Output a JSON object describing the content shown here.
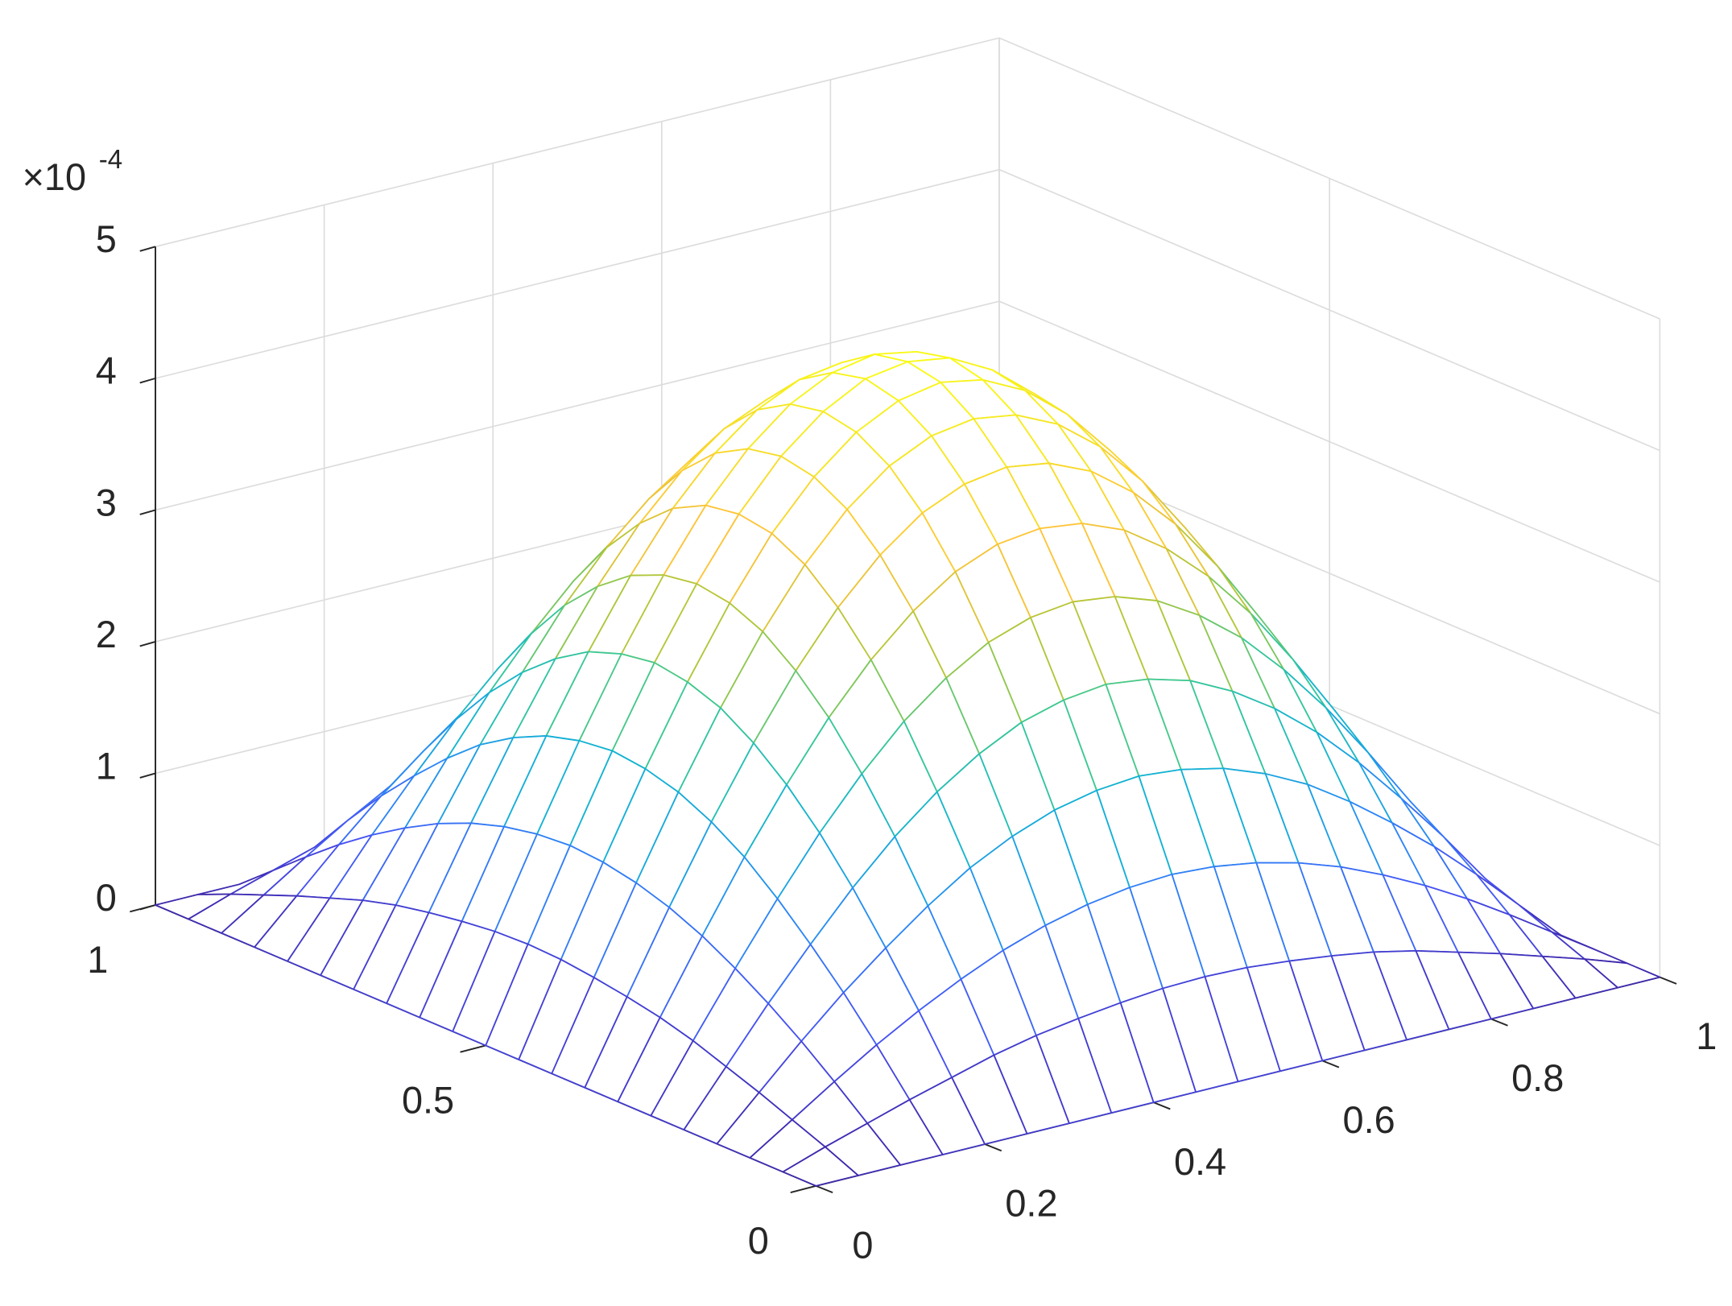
{
  "chart_data": {
    "type": "mesh",
    "colormap": "parula",
    "grid": true,
    "z_multiplier": "×10",
    "z_exponent": -4,
    "xlim": [
      0,
      1
    ],
    "ylim": [
      0,
      1
    ],
    "zlim": [
      0,
      5
    ],
    "xticks": [
      0,
      0.2,
      0.4,
      0.6,
      0.8,
      1
    ],
    "yticks": [
      0,
      0.5,
      1
    ],
    "zticks": [
      0,
      1,
      2,
      3,
      4,
      5
    ],
    "x": [
      0,
      0.05,
      0.1,
      0.15,
      0.2,
      0.25,
      0.3,
      0.35,
      0.4,
      0.45,
      0.5,
      0.55,
      0.6,
      0.65,
      0.7,
      0.75,
      0.8,
      0.85,
      0.9,
      0.95,
      1
    ],
    "y": [
      0,
      0.05,
      0.1,
      0.15,
      0.2,
      0.25,
      0.3,
      0.35,
      0.4,
      0.45,
      0.5,
      0.55,
      0.6,
      0.65,
      0.7,
      0.75,
      0.8,
      0.85,
      0.9,
      0.95,
      1
    ],
    "z": [
      [
        0,
        0,
        0,
        0,
        0,
        0,
        0,
        0,
        0,
        0,
        0,
        0,
        0,
        0,
        0,
        0,
        0,
        0,
        0,
        0,
        0
      ],
      [
        0,
        0.11,
        0.21,
        0.31,
        0.4,
        0.49,
        0.56,
        0.61,
        0.65,
        0.68,
        0.69,
        0.68,
        0.65,
        0.61,
        0.56,
        0.49,
        0.4,
        0.31,
        0.21,
        0.11,
        0
      ],
      [
        0,
        0.21,
        0.42,
        0.62,
        0.8,
        0.96,
        1.1,
        1.21,
        1.29,
        1.34,
        1.36,
        1.34,
        1.29,
        1.21,
        1.1,
        0.96,
        0.8,
        0.62,
        0.42,
        0.21,
        0
      ],
      [
        0,
        0.31,
        0.62,
        0.91,
        1.17,
        1.41,
        1.62,
        1.78,
        1.9,
        1.97,
        2,
        1.97,
        1.9,
        1.78,
        1.62,
        1.41,
        1.17,
        0.91,
        0.62,
        0.31,
        0
      ],
      [
        0,
        0.4,
        0.8,
        1.17,
        1.52,
        1.83,
        2.09,
        2.3,
        2.46,
        2.55,
        2.59,
        2.55,
        2.46,
        2.3,
        2.09,
        1.83,
        1.52,
        1.17,
        0.8,
        0.4,
        0
      ],
      [
        0,
        0.49,
        0.96,
        1.41,
        1.83,
        2.2,
        2.52,
        2.77,
        2.96,
        3.07,
        3.11,
        3.07,
        2.96,
        2.77,
        2.52,
        2.2,
        1.83,
        1.41,
        0.96,
        0.49,
        0
      ],
      [
        0,
        0.56,
        1.1,
        1.62,
        2.09,
        2.52,
        2.88,
        3.17,
        3.39,
        3.52,
        3.56,
        3.52,
        3.39,
        3.17,
        2.88,
        2.52,
        2.09,
        1.62,
        1.1,
        0.56,
        0
      ],
      [
        0,
        0.61,
        1.21,
        1.78,
        2.3,
        2.77,
        3.17,
        3.49,
        3.73,
        3.87,
        3.92,
        3.87,
        3.73,
        3.49,
        3.17,
        2.77,
        2.3,
        1.78,
        1.21,
        0.61,
        0
      ],
      [
        0,
        0.65,
        1.29,
        1.9,
        2.46,
        2.96,
        3.39,
        3.73,
        3.98,
        4.13,
        4.18,
        4.13,
        3.98,
        3.73,
        3.39,
        2.96,
        2.46,
        1.9,
        1.29,
        0.65,
        0
      ],
      [
        0,
        0.68,
        1.34,
        1.97,
        2.55,
        3.07,
        3.52,
        3.87,
        4.13,
        4.29,
        4.35,
        4.29,
        4.13,
        3.87,
        3.52,
        3.07,
        2.55,
        1.97,
        1.34,
        0.68,
        0
      ],
      [
        0,
        0.69,
        1.36,
        2,
        2.59,
        3.11,
        3.56,
        3.92,
        4.18,
        4.35,
        4.4,
        4.35,
        4.18,
        3.92,
        3.56,
        3.11,
        2.59,
        2,
        1.36,
        0.69,
        0
      ],
      [
        0,
        0.68,
        1.34,
        1.97,
        2.55,
        3.07,
        3.52,
        3.87,
        4.13,
        4.29,
        4.35,
        4.29,
        4.13,
        3.87,
        3.52,
        3.07,
        2.55,
        1.97,
        1.34,
        0.68,
        0
      ],
      [
        0,
        0.65,
        1.29,
        1.9,
        2.46,
        2.96,
        3.39,
        3.73,
        3.98,
        4.13,
        4.18,
        4.13,
        3.98,
        3.73,
        3.39,
        2.96,
        2.46,
        1.9,
        1.29,
        0.65,
        0
      ],
      [
        0,
        0.61,
        1.21,
        1.78,
        2.3,
        2.77,
        3.17,
        3.49,
        3.73,
        3.87,
        3.92,
        3.87,
        3.73,
        3.49,
        3.17,
        2.77,
        2.3,
        1.78,
        1.21,
        0.61,
        0
      ],
      [
        0,
        0.56,
        1.1,
        1.62,
        2.09,
        2.52,
        2.88,
        3.17,
        3.39,
        3.52,
        3.56,
        3.52,
        3.39,
        3.17,
        2.88,
        2.52,
        2.09,
        1.62,
        1.1,
        0.56,
        0
      ],
      [
        0,
        0.49,
        0.96,
        1.41,
        1.83,
        2.2,
        2.52,
        2.77,
        2.96,
        3.07,
        3.11,
        3.07,
        2.96,
        2.77,
        2.52,
        2.2,
        1.83,
        1.41,
        0.96,
        0.49,
        0
      ],
      [
        0,
        0.4,
        0.8,
        1.17,
        1.52,
        1.83,
        2.09,
        2.3,
        2.46,
        2.55,
        2.59,
        2.55,
        2.46,
        2.3,
        2.09,
        1.83,
        1.52,
        1.17,
        0.8,
        0.4,
        0
      ],
      [
        0,
        0.31,
        0.62,
        0.91,
        1.17,
        1.41,
        1.62,
        1.78,
        1.9,
        1.97,
        2,
        1.97,
        1.9,
        1.78,
        1.62,
        1.41,
        1.17,
        0.91,
        0.62,
        0.31,
        0
      ],
      [
        0,
        0.21,
        0.42,
        0.62,
        0.8,
        0.96,
        1.1,
        1.21,
        1.29,
        1.34,
        1.36,
        1.34,
        1.29,
        1.21,
        1.1,
        0.96,
        0.8,
        0.62,
        0.42,
        0.21,
        0
      ],
      [
        0,
        0.11,
        0.21,
        0.31,
        0.4,
        0.49,
        0.56,
        0.61,
        0.65,
        0.68,
        0.69,
        0.68,
        0.65,
        0.61,
        0.56,
        0.49,
        0.4,
        0.31,
        0.21,
        0.11,
        0
      ],
      [
        0,
        0,
        0,
        0,
        0,
        0,
        0,
        0,
        0,
        0,
        0,
        0,
        0,
        0,
        0,
        0,
        0,
        0,
        0,
        0,
        0
      ]
    ]
  }
}
